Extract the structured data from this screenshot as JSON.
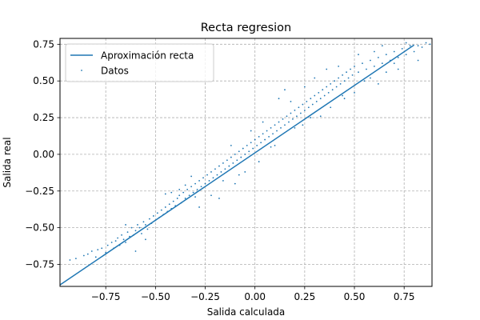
{
  "chart_data": {
    "type": "scatter",
    "title": "Recta regresion",
    "xlabel": "Salida calculada",
    "ylabel": "Salida real",
    "xlim": [
      -0.98,
      0.89
    ],
    "ylim": [
      -0.9,
      0.79
    ],
    "xticks": [
      -0.75,
      -0.5,
      -0.25,
      0.0,
      0.25,
      0.5,
      0.75
    ],
    "xtick_labels": [
      "−0.75",
      "−0.50",
      "−0.25",
      "0.00",
      "0.25",
      "0.50",
      "0.75"
    ],
    "yticks": [
      -0.75,
      -0.5,
      -0.25,
      0.0,
      0.25,
      0.5,
      0.75
    ],
    "ytick_labels": [
      "−0.75",
      "−0.50",
      "−0.25",
      "0.00",
      "0.25",
      "0.50",
      "0.75"
    ],
    "grid": true,
    "legend_position": "top-left",
    "colors": {
      "series": "#1f77b4",
      "grid": "#b0b0b0"
    },
    "series": [
      {
        "name": "Aproximación recta",
        "kind": "line",
        "x": [
          -0.98,
          0.8
        ],
        "y": [
          -0.89,
          0.745
        ]
      },
      {
        "name": "Datos",
        "kind": "scatter",
        "points": [
          [
            -0.93,
            -0.72
          ],
          [
            -0.9,
            -0.71
          ],
          [
            -0.86,
            -0.69
          ],
          [
            -0.84,
            -0.68
          ],
          [
            -0.82,
            -0.66
          ],
          [
            -0.8,
            -0.7
          ],
          [
            -0.79,
            -0.65
          ],
          [
            -0.77,
            -0.64
          ],
          [
            -0.75,
            -0.67
          ],
          [
            -0.74,
            -0.62
          ],
          [
            -0.72,
            -0.6
          ],
          [
            -0.71,
            -0.64
          ],
          [
            -0.7,
            -0.59
          ],
          [
            -0.69,
            -0.57
          ],
          [
            -0.68,
            -0.62
          ],
          [
            -0.67,
            -0.55
          ],
          [
            -0.66,
            -0.58
          ],
          [
            -0.65,
            -0.6
          ],
          [
            -0.64,
            -0.53
          ],
          [
            -0.63,
            -0.56
          ],
          [
            -0.62,
            -0.5
          ],
          [
            -0.61,
            -0.55
          ],
          [
            -0.6,
            -0.52
          ],
          [
            -0.59,
            -0.48
          ],
          [
            -0.58,
            -0.5
          ],
          [
            -0.57,
            -0.54
          ],
          [
            -0.56,
            -0.46
          ],
          [
            -0.55,
            -0.48
          ],
          [
            -0.54,
            -0.51
          ],
          [
            -0.53,
            -0.44
          ],
          [
            -0.52,
            -0.47
          ],
          [
            -0.51,
            -0.42
          ],
          [
            -0.5,
            -0.45
          ],
          [
            -0.49,
            -0.4
          ],
          [
            -0.48,
            -0.43
          ],
          [
            -0.47,
            -0.38
          ],
          [
            -0.46,
            -0.41
          ],
          [
            -0.45,
            -0.36
          ],
          [
            -0.44,
            -0.39
          ],
          [
            -0.43,
            -0.34
          ],
          [
            -0.42,
            -0.37
          ],
          [
            -0.41,
            -0.32
          ],
          [
            -0.4,
            -0.35
          ],
          [
            -0.39,
            -0.3
          ],
          [
            -0.38,
            -0.28
          ],
          [
            -0.37,
            -0.33
          ],
          [
            -0.36,
            -0.26
          ],
          [
            -0.35,
            -0.3
          ],
          [
            -0.34,
            -0.24
          ],
          [
            -0.33,
            -0.28
          ],
          [
            -0.32,
            -0.22
          ],
          [
            -0.31,
            -0.26
          ],
          [
            -0.3,
            -0.2
          ],
          [
            -0.29,
            -0.24
          ],
          [
            -0.28,
            -0.18
          ],
          [
            -0.27,
            -0.22
          ],
          [
            -0.26,
            -0.16
          ],
          [
            -0.25,
            -0.2
          ],
          [
            -0.24,
            -0.14
          ],
          [
            -0.23,
            -0.18
          ],
          [
            -0.22,
            -0.12
          ],
          [
            -0.21,
            -0.16
          ],
          [
            -0.2,
            -0.1
          ],
          [
            -0.19,
            -0.14
          ],
          [
            -0.18,
            -0.08
          ],
          [
            -0.17,
            -0.12
          ],
          [
            -0.16,
            -0.06
          ],
          [
            -0.15,
            -0.1
          ],
          [
            -0.14,
            -0.04
          ],
          [
            -0.13,
            -0.08
          ],
          [
            -0.12,
            -0.02
          ],
          [
            -0.11,
            -0.06
          ],
          [
            -0.1,
            0.0
          ],
          [
            -0.09,
            -0.04
          ],
          [
            -0.08,
            0.02
          ],
          [
            -0.07,
            -0.02
          ],
          [
            -0.06,
            0.04
          ],
          [
            -0.05,
            0.0
          ],
          [
            -0.04,
            0.06
          ],
          [
            -0.03,
            0.02
          ],
          [
            -0.02,
            0.08
          ],
          [
            -0.01,
            0.04
          ],
          [
            0.0,
            0.1
          ],
          [
            0.01,
            0.06
          ],
          [
            0.02,
            0.12
          ],
          [
            0.03,
            0.08
          ],
          [
            0.04,
            0.14
          ],
          [
            0.05,
            0.1
          ],
          [
            0.06,
            0.16
          ],
          [
            0.07,
            0.12
          ],
          [
            0.08,
            0.18
          ],
          [
            0.09,
            0.14
          ],
          [
            0.1,
            0.2
          ],
          [
            0.11,
            0.16
          ],
          [
            0.12,
            0.22
          ],
          [
            0.13,
            0.18
          ],
          [
            0.14,
            0.24
          ],
          [
            0.15,
            0.2
          ],
          [
            0.16,
            0.26
          ],
          [
            0.17,
            0.22
          ],
          [
            0.18,
            0.28
          ],
          [
            0.19,
            0.24
          ],
          [
            0.2,
            0.3
          ],
          [
            0.21,
            0.26
          ],
          [
            0.22,
            0.32
          ],
          [
            0.23,
            0.28
          ],
          [
            0.24,
            0.34
          ],
          [
            0.25,
            0.3
          ],
          [
            0.26,
            0.36
          ],
          [
            0.27,
            0.32
          ],
          [
            0.28,
            0.38
          ],
          [
            0.29,
            0.34
          ],
          [
            0.3,
            0.4
          ],
          [
            0.31,
            0.36
          ],
          [
            0.32,
            0.42
          ],
          [
            0.33,
            0.38
          ],
          [
            0.34,
            0.44
          ],
          [
            0.35,
            0.4
          ],
          [
            0.36,
            0.46
          ],
          [
            0.37,
            0.42
          ],
          [
            0.38,
            0.48
          ],
          [
            0.39,
            0.44
          ],
          [
            0.4,
            0.5
          ],
          [
            0.41,
            0.46
          ],
          [
            0.42,
            0.52
          ],
          [
            0.43,
            0.48
          ],
          [
            0.44,
            0.54
          ],
          [
            0.45,
            0.5
          ],
          [
            0.46,
            0.56
          ],
          [
            0.47,
            0.52
          ],
          [
            0.48,
            0.58
          ],
          [
            0.49,
            0.54
          ],
          [
            0.5,
            0.6
          ],
          [
            0.52,
            0.56
          ],
          [
            0.54,
            0.62
          ],
          [
            0.56,
            0.58
          ],
          [
            0.58,
            0.64
          ],
          [
            0.6,
            0.6
          ],
          [
            0.62,
            0.66
          ],
          [
            0.64,
            0.62
          ],
          [
            0.66,
            0.68
          ],
          [
            0.68,
            0.64
          ],
          [
            0.7,
            0.7
          ],
          [
            0.72,
            0.66
          ],
          [
            0.74,
            0.72
          ],
          [
            0.76,
            0.68
          ],
          [
            0.78,
            0.74
          ],
          [
            0.8,
            0.7
          ],
          [
            0.82,
            0.74
          ],
          [
            0.84,
            0.73
          ],
          [
            0.86,
            0.76
          ],
          [
            0.88,
            0.75
          ],
          [
            -0.45,
            -0.27
          ],
          [
            -0.42,
            -0.26
          ],
          [
            -0.38,
            -0.24
          ],
          [
            -0.35,
            -0.21
          ],
          [
            -0.3,
            -0.29
          ],
          [
            -0.22,
            -0.28
          ],
          [
            -0.18,
            -0.3
          ],
          [
            -0.1,
            -0.2
          ],
          [
            -0.05,
            -0.12
          ],
          [
            0.02,
            -0.05
          ],
          [
            0.08,
            0.05
          ],
          [
            0.12,
            0.38
          ],
          [
            0.15,
            0.44
          ],
          [
            0.2,
            0.18
          ],
          [
            0.25,
            0.46
          ],
          [
            0.3,
            0.52
          ],
          [
            0.33,
            0.26
          ],
          [
            0.38,
            0.32
          ],
          [
            0.42,
            0.6
          ],
          [
            0.45,
            0.38
          ],
          [
            0.5,
            0.42
          ],
          [
            0.52,
            0.68
          ],
          [
            0.55,
            0.5
          ],
          [
            0.6,
            0.7
          ],
          [
            0.62,
            0.48
          ],
          [
            0.66,
            0.56
          ],
          [
            0.7,
            0.62
          ],
          [
            0.24,
            0.2
          ],
          [
            0.18,
            0.36
          ],
          [
            -0.55,
            -0.58
          ],
          [
            -0.6,
            -0.66
          ],
          [
            -0.65,
            -0.48
          ],
          [
            -0.28,
            -0.36
          ],
          [
            -0.32,
            -0.15
          ],
          [
            -0.16,
            -0.18
          ],
          [
            -0.08,
            -0.14
          ],
          [
            0.04,
            0.22
          ],
          [
            0.1,
            0.06
          ],
          [
            0.28,
            0.25
          ],
          [
            0.36,
            0.58
          ],
          [
            0.44,
            0.4
          ],
          [
            0.58,
            0.52
          ],
          [
            0.64,
            0.74
          ],
          [
            0.72,
            0.58
          ],
          [
            0.76,
            0.76
          ],
          [
            0.82,
            0.64
          ],
          [
            -0.02,
            0.16
          ],
          [
            -0.12,
            0.06
          ]
        ]
      }
    ]
  }
}
